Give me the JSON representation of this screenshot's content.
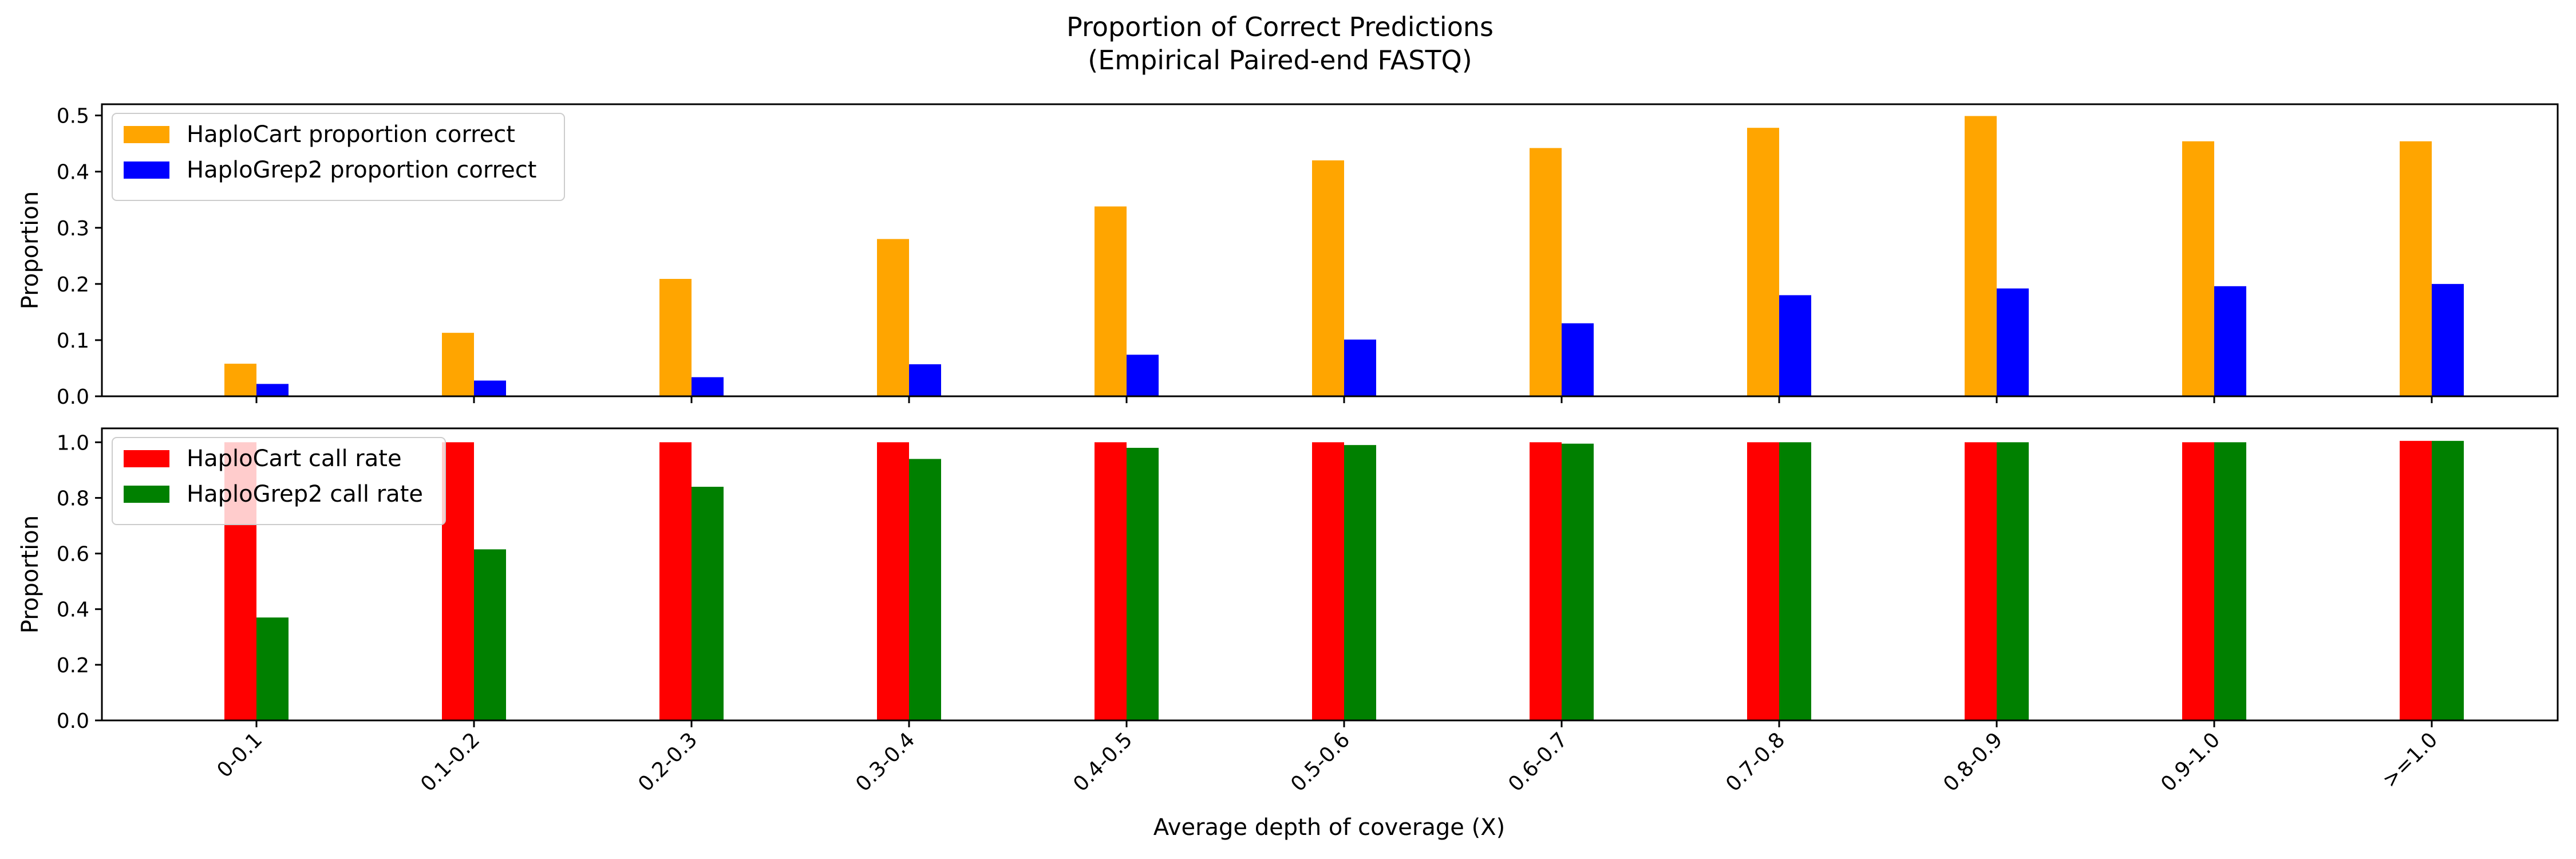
{
  "figure": {
    "title_line1": "Proportion of Correct Predictions",
    "title_line2": "(Empirical Paired-end FASTQ)",
    "xlabel": "Average depth of coverage (X)"
  },
  "chart_data": [
    {
      "type": "bar",
      "title": "",
      "xlabel": "",
      "ylabel": "Proportion",
      "ylim": [
        0,
        0.52
      ],
      "yticks": [
        0.0,
        0.1,
        0.2,
        0.3,
        0.4,
        0.5
      ],
      "ytick_labels": [
        "0.0",
        "0.1",
        "0.2",
        "0.3",
        "0.4",
        "0.5"
      ],
      "categories": [
        "0-0.1",
        "0.1-0.2",
        "0.2-0.3",
        "0.3-0.4",
        "0.4-0.5",
        "0.5-0.6",
        "0.6-0.7",
        "0.7-0.8",
        "0.8-0.9",
        "0.9-1.0",
        ">=1.0"
      ],
      "show_x_tick_labels": false,
      "grid": false,
      "legend": "top-left",
      "series": [
        {
          "name": "HaploCart proportion correct",
          "color": "#FFA500",
          "values": [
            0.058,
            0.113,
            0.209,
            0.28,
            0.338,
            0.42,
            0.442,
            0.478,
            0.499,
            0.454,
            0.454
          ]
        },
        {
          "name": "HaploGrep2 proportion correct",
          "color": "#0000FF",
          "values": [
            0.022,
            0.028,
            0.034,
            0.057,
            0.074,
            0.101,
            0.13,
            0.18,
            0.192,
            0.196,
            0.2
          ]
        }
      ]
    },
    {
      "type": "bar",
      "title": "",
      "xlabel": "Average depth of coverage (X)",
      "ylabel": "Proportion",
      "ylim": [
        0,
        1.05
      ],
      "yticks": [
        0.0,
        0.2,
        0.4,
        0.6,
        0.8,
        1.0
      ],
      "ytick_labels": [
        "0.0",
        "0.2",
        "0.4",
        "0.6",
        "0.8",
        "1.0"
      ],
      "categories": [
        "0-0.1",
        "0.1-0.2",
        "0.2-0.3",
        "0.3-0.4",
        "0.4-0.5",
        "0.5-0.6",
        "0.6-0.7",
        "0.7-0.8",
        "0.8-0.9",
        "0.9-1.0",
        ">=1.0"
      ],
      "show_x_tick_labels": true,
      "grid": false,
      "legend": "top-left",
      "series": [
        {
          "name": "HaploCart call rate",
          "color": "#FF0000",
          "values": [
            1.0,
            1.0,
            1.0,
            1.0,
            1.0,
            1.0,
            1.0,
            1.0,
            1.0,
            1.0,
            1.005
          ]
        },
        {
          "name": "HaploGrep2 call rate",
          "color": "#008000",
          "values": [
            0.37,
            0.615,
            0.84,
            0.94,
            0.98,
            0.99,
            0.995,
            1.0,
            1.0,
            1.0,
            1.005
          ]
        }
      ]
    }
  ]
}
